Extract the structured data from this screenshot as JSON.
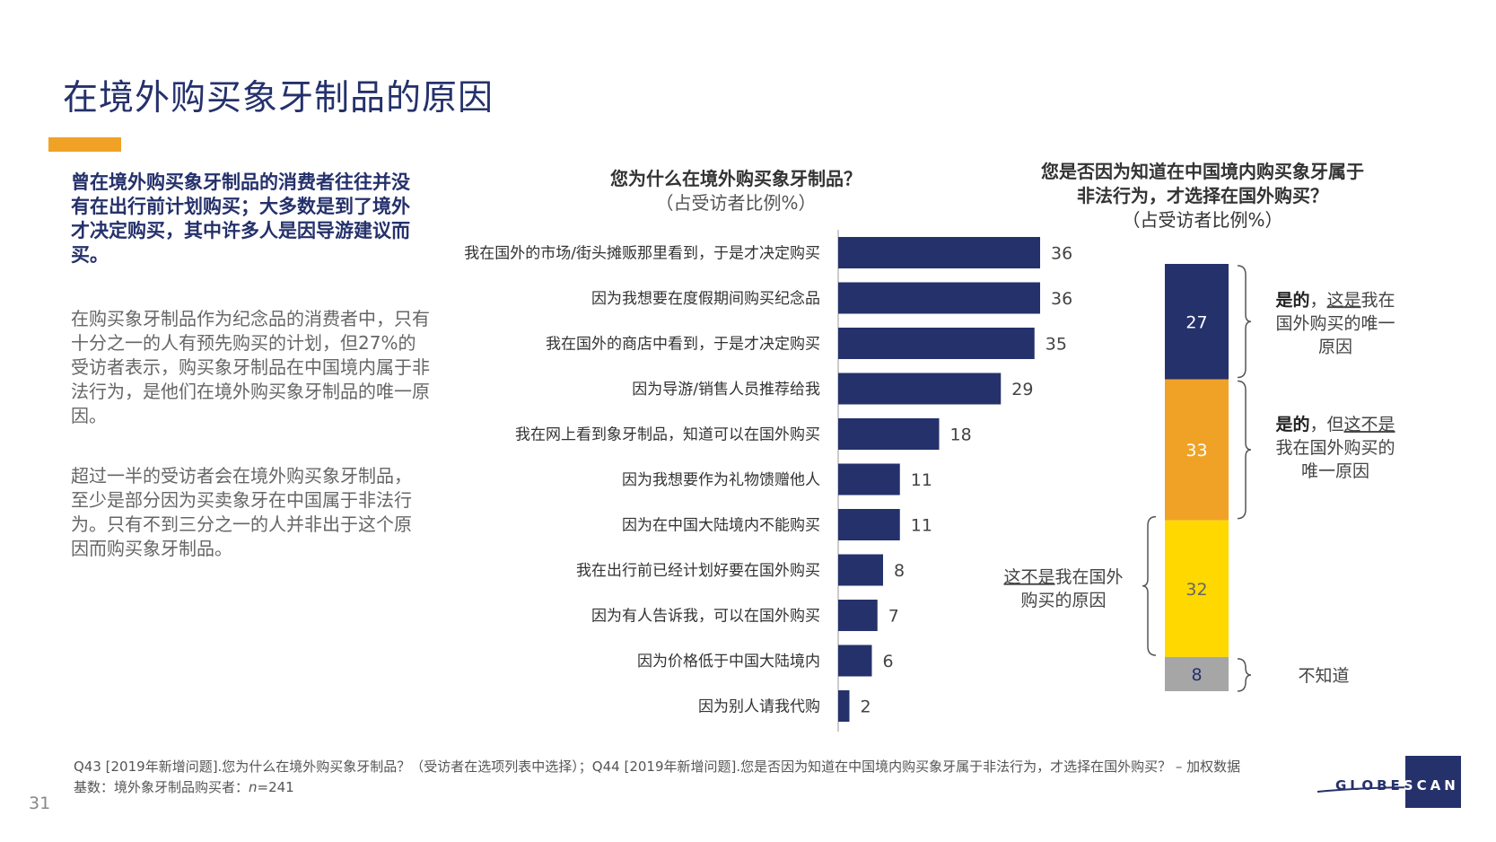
{
  "slide": {
    "title": "在境外购买象牙制品的原因",
    "accent_color": "#f0a226",
    "lead": "曾在境外购买象牙制品的消费者往往并没有在出行前计划购买；大多数是到了境外才决定购买，其中许多人是因导游建议而买。",
    "p1": "在购买象牙制品作为纪念品的消费者中，只有十分之一的人有预先购买的计划，但27%的受访者表示，购买象牙制品在中国境内属于非法行为，是他们在境外购买象牙制品的唯一原因。",
    "p2": "超过一半的受访者会在境外购买象牙制品，至少是部分因为买卖象牙在中国属于非法行为。只有不到三分之一的人并非出于这个原因而购买象牙制品。",
    "footnote1": "Q43 [2019年新增问题].您为什么在境外购买象牙制品？（受访者在选项列表中选择）；Q44 [2019年新增问题].您是否因为知道在中国境内购买象牙属于非法行为，才选择在国外购买？ – 加权数据",
    "footnote2_prefix": "基数：境外象牙制品购买者：",
    "footnote2_n": "n",
    "footnote2_suffix": "=241",
    "page_number": "31",
    "logo_text_left": "GLOBE",
    "logo_text_right": "SCAN"
  },
  "chart_data": [
    {
      "type": "bar",
      "orientation": "horizontal",
      "title": "您为什么在境外购买象牙制品？",
      "subtitle": "（占受访者比例%）",
      "color": "#25316b",
      "categories": [
        "我在国外的市场/街头摊贩那里看到，于是才决定购买",
        "因为我想要在度假期间购买纪念品",
        "我在国外的商店中看到，于是才决定购买",
        "因为导游/销售人员推荐给我",
        "我在网上看到象牙制品，知道可以在国外购买",
        "因为我想要作为礼物馈赠他人",
        "因为在中国大陆境内不能购买",
        "我在出行前已经计划好要在国外购买",
        "因为有人告诉我，可以在国外购买",
        "因为价格低于中国大陆境内",
        "因为别人请我代购"
      ],
      "values": [
        36,
        36,
        35,
        29,
        18,
        11,
        11,
        8,
        7,
        6,
        2
      ],
      "xlim": [
        0,
        36
      ]
    },
    {
      "type": "bar",
      "stacked": true,
      "title_line1": "您是否因为知道在中国境内购买象牙属于",
      "title_line2": "非法行为，才选择在国外购买？",
      "subtitle": "（占受访者比例%）",
      "segments": [
        {
          "value": 27,
          "color": "#25316b",
          "text_color": "#ffffff",
          "label_bold": "是的",
          "label_sep": "，",
          "label_underline": "这是",
          "label_rest1": "我在",
          "label_line2": "国外购买的唯一",
          "label_line3": "原因"
        },
        {
          "value": 33,
          "color": "#f0a226",
          "text_color": "#ffffff",
          "label_bold": "是的",
          "label_sep": "，但",
          "label_underline": "这不是",
          "label_rest1": "",
          "label_line2": "我在国外购买的",
          "label_line3": "唯一原因"
        },
        {
          "value": 32,
          "color": "#ffd800",
          "text_color": "#666666",
          "label_underline": "这不是",
          "label_rest1": "我在国外",
          "label_line2": "购买的原因"
        },
        {
          "value": 8,
          "color": "#a6a6a6",
          "text_color": "#25316b",
          "label_plain": "不知道"
        }
      ]
    }
  ]
}
